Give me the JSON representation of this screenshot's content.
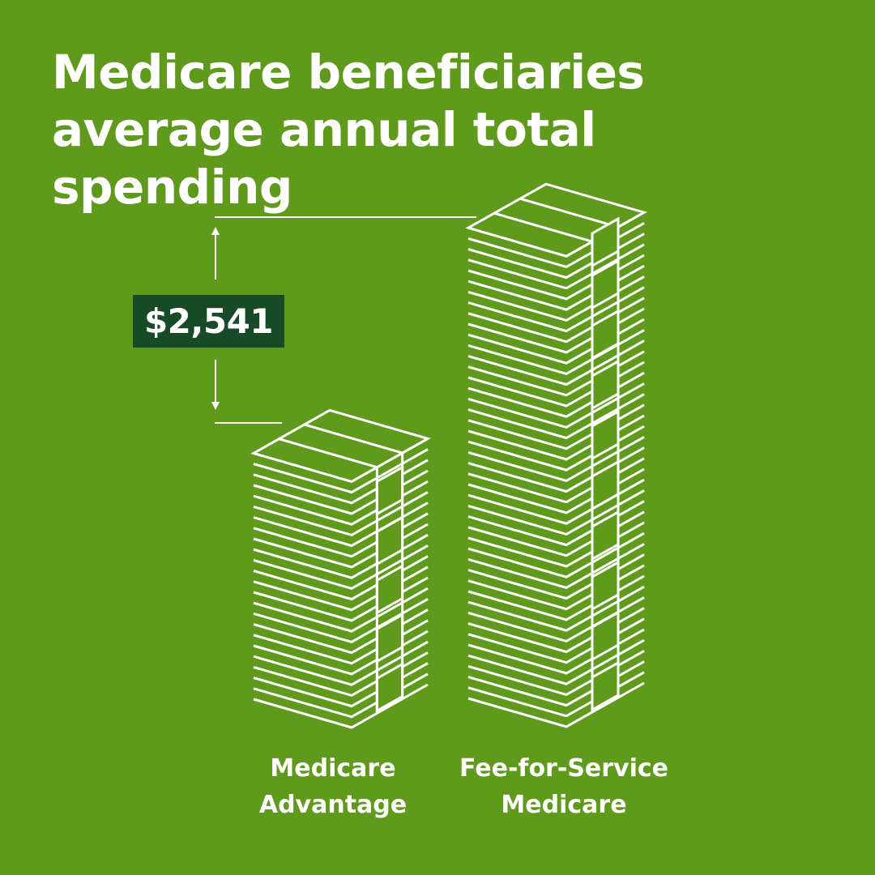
{
  "colors": {
    "background": "#5f9a1c",
    "foreground": "#ffffff",
    "badge": "#174a27"
  },
  "title": "Medicare beneficiaries average annual total spending",
  "difference_label": "$2,541",
  "chart_data": {
    "type": "bar",
    "title": "Medicare beneficiaries average annual total spending",
    "categories": [
      "Medicare Advantage",
      "Fee-for-Service Medicare"
    ],
    "annotation": "$2,541",
    "difference": 2541,
    "axis": "none",
    "grid": false,
    "legend": "none"
  },
  "categories": [
    {
      "line1": "Medicare",
      "line2": "Advantage"
    },
    {
      "line1": "Fee-for-Service",
      "line2": "Medicare"
    }
  ]
}
